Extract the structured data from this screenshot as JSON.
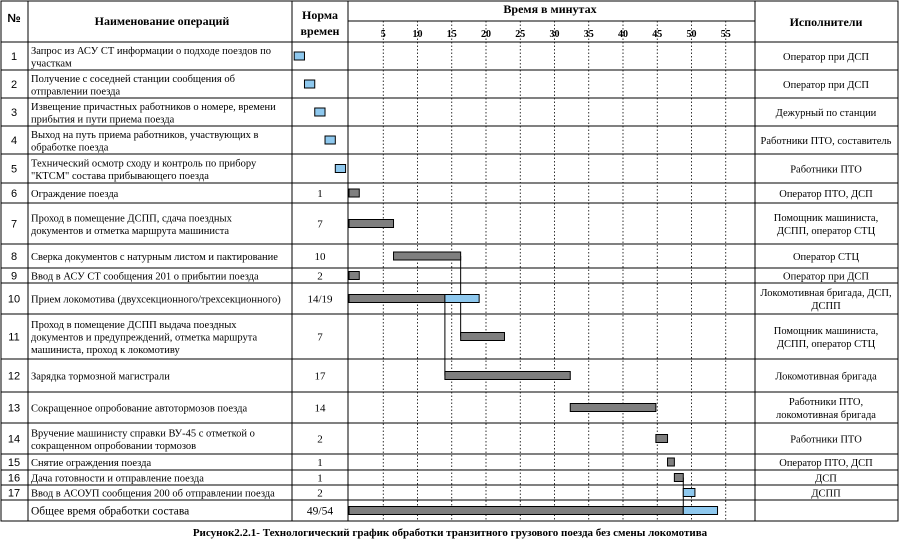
{
  "header": {
    "num": "№",
    "operation": "Наименование операций",
    "norm_line1": "Норма",
    "norm_line2": "времен",
    "time": "Время  в минутах",
    "executors": "Исполнители"
  },
  "ticks": [
    "5",
    "10",
    "15",
    "20",
    "25",
    "30",
    "35",
    "40",
    "45",
    "50",
    "55"
  ],
  "rows": [
    {
      "num": "1",
      "name": [
        "Запрос из АСУ СТ информации о подходе поездов по",
        "участкам"
      ],
      "norm": "",
      "exec": [
        "Оператор при ДСП"
      ]
    },
    {
      "num": "2",
      "name": [
        "Получение с соседней станции сообщения об",
        "отправлении поезда"
      ],
      "norm": "",
      "exec": [
        "Оператор при ДСП"
      ]
    },
    {
      "num": "3",
      "name": [
        " Извещение причастных работников о номере, времени",
        "прибытия и пути приема поезда"
      ],
      "norm": "",
      "exec": [
        "Дежурный по станции"
      ]
    },
    {
      "num": "4",
      "name": [
        "Выход на путь приема работников, участвующих в",
        "обработке поезда"
      ],
      "norm": "",
      "exec": [
        "Работники ПТО, составитель"
      ]
    },
    {
      "num": "5",
      "name": [
        "Технический  осмотр сходу и контроль по прибору",
        "\"КТСМ\" состава прибывающего поезда"
      ],
      "norm": "",
      "exec": [
        "Работники ПТО"
      ]
    },
    {
      "num": "6",
      "name": [
        "Ограждение поезда"
      ],
      "norm": "1",
      "exec": [
        "Оператор ПТО, ДСП"
      ]
    },
    {
      "num": "7",
      "name": [
        "Проход в помещение ДСПП, сдача поездных",
        "документов и отметка маршрута машиниста"
      ],
      "norm": "7",
      "exec": [
        "Помощник машиниста,",
        "ДСПП, оператор СТЦ"
      ]
    },
    {
      "num": "8",
      "name": [
        "Сверка документов с натурным листом и пактирование"
      ],
      "norm": "10",
      "exec": [
        "Оператор СТЦ"
      ]
    },
    {
      "num": "9",
      "name": [
        "Ввод в АСУ СТ сообщения 201 о прибытии поезда"
      ],
      "norm": "2",
      "exec": [
        "Оператор при ДСП"
      ]
    },
    {
      "num": "10",
      "name": [
        "Прием локомотива (двухсекционного/трехсекционного)"
      ],
      "norm": "14/19",
      "exec": [
        "Локомотивная бригада, ДСП,",
        "ДСПП"
      ]
    },
    {
      "num": "11",
      "name": [
        "Проход в помещение ДСПП выдача поездных",
        "документов и предупреждений, отметка маршрута",
        "машиниста, проход к локомотиву"
      ],
      "norm": "7",
      "exec": [
        "Помощник машиниста,",
        "ДСПП, оператор СТЦ"
      ]
    },
    {
      "num": "12",
      "name": [
        "Зарядка тормозной магистрали"
      ],
      "norm": "17",
      "exec": [
        "Локомотивная бригада"
      ]
    },
    {
      "num": "13",
      "name": [
        "Сокращенное опробование автотормозов поезда"
      ],
      "norm": "14",
      "exec": [
        "Работники ПТО,",
        "локомотивная бригада"
      ]
    },
    {
      "num": "14",
      "name": [
        "Вручение машинисту справки ВУ-45 с отметкой о",
        "сокращенном опробовании тормозов"
      ],
      "norm": "2",
      "exec": [
        "Работники ПТО"
      ]
    },
    {
      "num": "15",
      "name": [
        "Снятие ограждения поезда"
      ],
      "norm": "1",
      "exec": [
        "Оператор ПТО, ДСП"
      ]
    },
    {
      "num": "16",
      "name": [
        "Дача готовности и отправление поезда"
      ],
      "norm": "1",
      "exec": [
        "ДСП"
      ]
    },
    {
      "num": "17",
      "name": [
        "Ввод в АСОУП сообщения 200 об отправлении поезда"
      ],
      "norm": "2",
      "exec": [
        "ДСПП"
      ]
    }
  ],
  "total": {
    "name": "Общее время обработки состава",
    "norm": "49/54"
  },
  "caption": "Рисунок2.2.1- Технологический график обработки транзитного грузового поезда без смены локомотива",
  "colors": {
    "gray_bar": "#7f7f7f",
    "blue_bar": "#8ec8ee",
    "grid": "#000000"
  },
  "chart_data": {
    "type": "gantt",
    "title": "Время  в минутах",
    "x_unit": "минуты",
    "xlim": [
      0,
      60
    ],
    "ticks": [
      5,
      10,
      15,
      20,
      25,
      30,
      35,
      40,
      45,
      50,
      55
    ],
    "bars": [
      {
        "row": 1,
        "start": -8.0,
        "end": -6.5,
        "color": "blue"
      },
      {
        "row": 2,
        "start": -6.5,
        "end": -5.0,
        "color": "blue"
      },
      {
        "row": 3,
        "start": -5.0,
        "end": -3.5,
        "color": "blue"
      },
      {
        "row": 4,
        "start": -3.5,
        "end": -2.0,
        "color": "blue"
      },
      {
        "row": 5,
        "start": -2.0,
        "end": -0.5,
        "color": "blue"
      },
      {
        "row": 6,
        "start": 0,
        "end": 1.5,
        "color": "gray"
      },
      {
        "row": 7,
        "start": 0,
        "end": 6.5,
        "color": "gray"
      },
      {
        "row": 8,
        "start": 6.5,
        "end": 16.3,
        "color": "gray"
      },
      {
        "row": 9,
        "start": 0,
        "end": 1.5,
        "color": "gray"
      },
      {
        "row": 10,
        "start": 0,
        "end": 14,
        "color": "gray"
      },
      {
        "row": 10,
        "start": 14,
        "end": 19,
        "color": "blue"
      },
      {
        "row": 11,
        "start": 16.3,
        "end": 22.7,
        "color": "gray"
      },
      {
        "row": 12,
        "start": 14,
        "end": 32.3,
        "color": "gray"
      },
      {
        "row": 13,
        "start": 32.3,
        "end": 44.8,
        "color": "gray"
      },
      {
        "row": 14,
        "start": 44.8,
        "end": 46.5,
        "color": "gray"
      },
      {
        "row": 15,
        "start": 46.5,
        "end": 47.5,
        "color": "gray"
      },
      {
        "row": 16,
        "start": 47.5,
        "end": 48.8,
        "color": "gray"
      },
      {
        "row": 17,
        "start": 48.8,
        "end": 50.5,
        "color": "blue"
      },
      {
        "row": 18,
        "start": 0,
        "end": 48.8,
        "color": "gray"
      },
      {
        "row": 18,
        "start": 48.8,
        "end": 53.8,
        "color": "blue"
      }
    ],
    "connectors": [
      {
        "minute": 14,
        "from_row": 10,
        "to_row": 12
      },
      {
        "minute": 16.3,
        "from_row": 8,
        "to_row": 11
      },
      {
        "minute": 48.8,
        "from_row": 16,
        "to_row": 18
      }
    ]
  }
}
